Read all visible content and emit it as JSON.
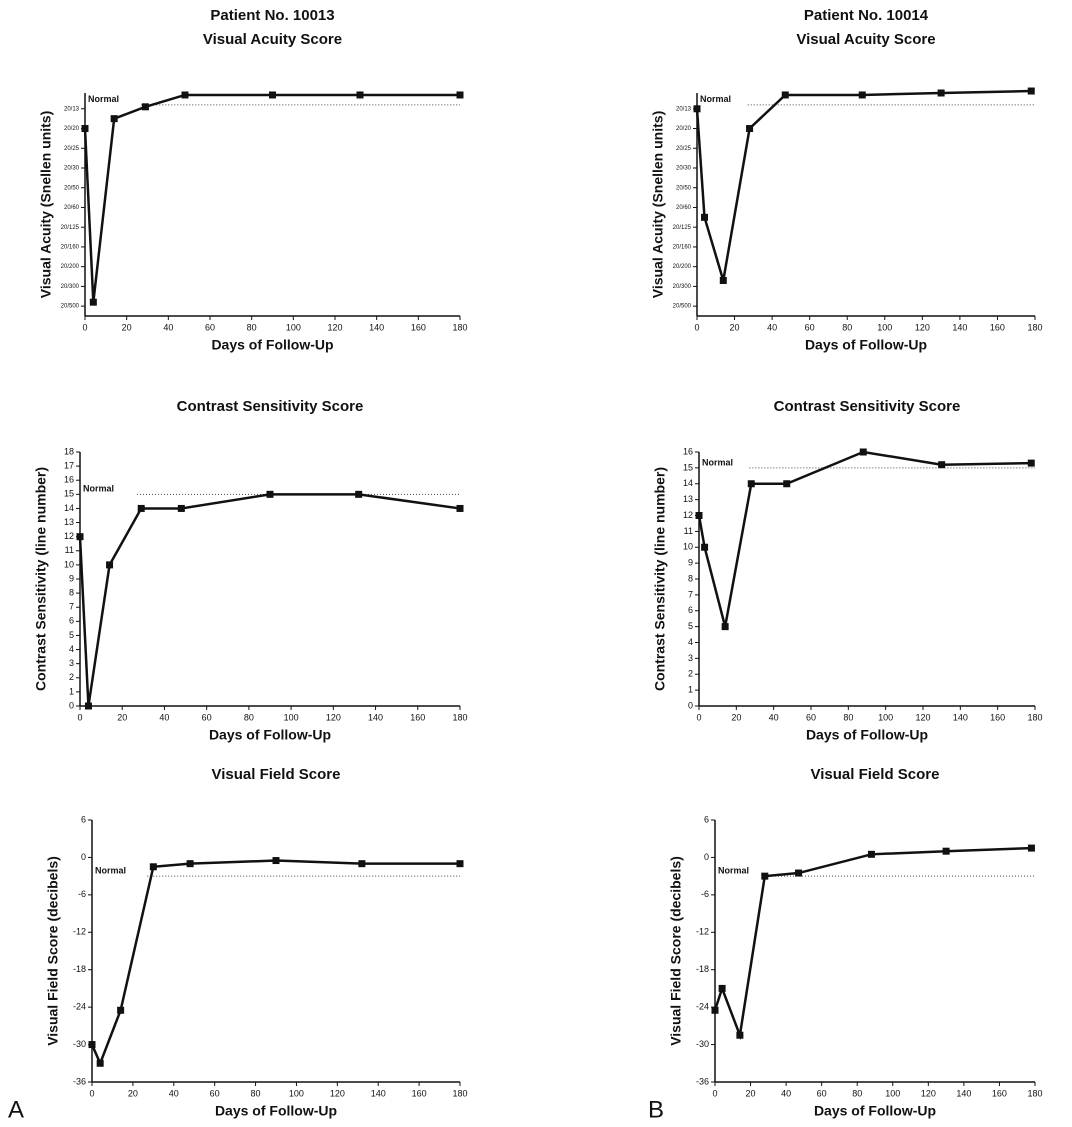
{
  "panel_labels": [
    "A",
    "B"
  ],
  "chart_data": [
    {
      "type": "line",
      "title": "Patient No. 10013",
      "subtitle": "Visual Acuity Score",
      "xlabel": "Days of Follow-Up",
      "ylabel": "Visual Acuity (Snellen units)",
      "annotation": "Normal",
      "normal": 11.2,
      "series": [
        {
          "color": "#111111",
          "x": [
            0,
            4,
            14,
            29,
            48,
            90,
            132,
            180
          ],
          "values": [
            10,
            1.2,
            10.5,
            11.1,
            11.7,
            11.7,
            11.7,
            11.7
          ]
        }
      ],
      "xlim": [
        0,
        180
      ],
      "xticks": [
        0,
        20,
        40,
        60,
        80,
        100,
        120,
        140,
        160,
        180
      ],
      "ylim": [
        0.5,
        11.8
      ],
      "yticks": [
        {
          "value": 1,
          "label": "20/500"
        },
        {
          "value": 2,
          "label": "20/300"
        },
        {
          "value": 3,
          "label": "20/200"
        },
        {
          "value": 4,
          "label": "20/160"
        },
        {
          "value": 5,
          "label": "20/125"
        },
        {
          "value": 6,
          "label": "20/60"
        },
        {
          "value": 7,
          "label": "20/50"
        },
        {
          "value": 8,
          "label": "20/30"
        },
        {
          "value": 9,
          "label": "20/25"
        },
        {
          "value": 10,
          "label": "20/20"
        },
        {
          "value": 11,
          "label": "20/13"
        }
      ]
    },
    {
      "type": "line",
      "title": "Patient No. 10014",
      "subtitle": "Visual Acuity Score",
      "xlabel": "Days of Follow-Up",
      "ylabel": "Visual Acuity (Snellen units)",
      "annotation": "Normal",
      "normal": 11.2,
      "series": [
        {
          "color": "#111111",
          "x": [
            0,
            4,
            14,
            28,
            47,
            88,
            130,
            178
          ],
          "values": [
            11,
            5.5,
            2.3,
            10,
            11.7,
            11.7,
            11.8,
            11.9
          ]
        }
      ],
      "xlim": [
        0,
        180
      ],
      "xticks": [
        0,
        20,
        40,
        60,
        80,
        100,
        120,
        140,
        160,
        180
      ],
      "ylim": [
        0.5,
        11.8
      ],
      "yticks": [
        {
          "value": 1,
          "label": "20/500"
        },
        {
          "value": 2,
          "label": "20/300"
        },
        {
          "value": 3,
          "label": "20/200"
        },
        {
          "value": 4,
          "label": "20/160"
        },
        {
          "value": 5,
          "label": "20/125"
        },
        {
          "value": 6,
          "label": "20/60"
        },
        {
          "value": 7,
          "label": "20/50"
        },
        {
          "value": 8,
          "label": "20/30"
        },
        {
          "value": 9,
          "label": "20/25"
        },
        {
          "value": 10,
          "label": "20/20"
        },
        {
          "value": 11,
          "label": "20/13"
        }
      ]
    },
    {
      "type": "line",
      "title": "Contrast Sensitivity Score",
      "xlabel": "Days of Follow-Up",
      "ylabel": "Contrast Sensitivity (line number)",
      "annotation": "Normal",
      "normal": 15,
      "series": [
        {
          "color": "#111111",
          "x": [
            0,
            4,
            14,
            29,
            48,
            90,
            132,
            180
          ],
          "values": [
            12,
            0,
            10,
            14,
            14,
            15,
            15,
            14
          ]
        }
      ],
      "xlim": [
        0,
        180
      ],
      "xticks": [
        0,
        20,
        40,
        60,
        80,
        100,
        120,
        140,
        160,
        180
      ],
      "ylim": [
        0,
        18
      ],
      "yticks": [
        0,
        1,
        2,
        3,
        4,
        5,
        6,
        7,
        8,
        9,
        10,
        11,
        12,
        13,
        14,
        15,
        16,
        17,
        18
      ]
    },
    {
      "type": "line",
      "title": "Contrast Sensitivity Score",
      "xlabel": "Days of Follow-Up",
      "ylabel": "Contrast Sensitivity (line number)",
      "annotation": "Normal",
      "normal": 15,
      "series": [
        {
          "color": "#111111",
          "x": [
            0,
            3,
            14,
            28,
            47,
            88,
            130,
            178
          ],
          "values": [
            12,
            10,
            5,
            14,
            14,
            16,
            15.2,
            15.3
          ]
        }
      ],
      "xlim": [
        0,
        180
      ],
      "xticks": [
        0,
        20,
        40,
        60,
        80,
        100,
        120,
        140,
        160,
        180
      ],
      "ylim": [
        0,
        16
      ],
      "yticks": [
        0,
        1,
        2,
        3,
        4,
        5,
        6,
        7,
        8,
        9,
        10,
        11,
        12,
        13,
        14,
        15,
        16
      ]
    },
    {
      "type": "line",
      "title": "Visual Field Score",
      "xlabel": "Days of Follow-Up",
      "ylabel": "Visual Field Score (decibels)",
      "annotation": "Normal",
      "normal": -3,
      "series": [
        {
          "color": "#111111",
          "x": [
            0,
            4,
            14,
            30,
            48,
            90,
            132,
            180
          ],
          "values": [
            -30,
            -33,
            -24.5,
            -1.5,
            -1,
            -0.5,
            -1,
            -1
          ]
        }
      ],
      "xlim": [
        0,
        180
      ],
      "xticks": [
        0,
        20,
        40,
        60,
        80,
        100,
        120,
        140,
        160,
        180
      ],
      "ylim": [
        -36,
        6
      ],
      "yticks": [
        -36,
        -30,
        -24,
        -18,
        -12,
        -6,
        0,
        6
      ]
    },
    {
      "type": "line",
      "title": "Visual Field Score",
      "xlabel": "Days of Follow-Up",
      "ylabel": "Visual Field Score (decibels)",
      "annotation": "Normal",
      "normal": -3,
      "series": [
        {
          "color": "#111111",
          "x": [
            0,
            4,
            14,
            28,
            47,
            88,
            130,
            178
          ],
          "values": [
            -24.5,
            -21,
            -28.5,
            -3,
            -2.5,
            0.5,
            1,
            1.5
          ]
        }
      ],
      "xlim": [
        0,
        180
      ],
      "xticks": [
        0,
        20,
        40,
        60,
        80,
        100,
        120,
        140,
        160,
        180
      ],
      "ylim": [
        -36,
        6
      ],
      "yticks": [
        -36,
        -30,
        -24,
        -18,
        -12,
        -6,
        0,
        6
      ]
    }
  ]
}
